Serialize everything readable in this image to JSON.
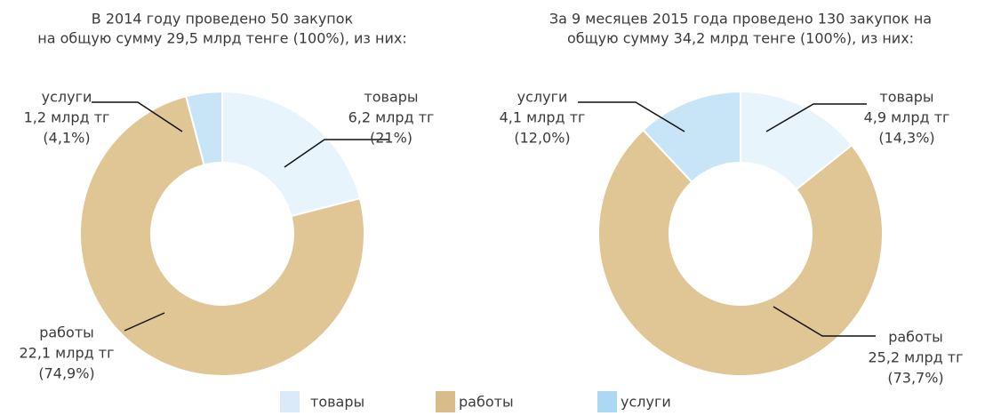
{
  "chart_data": [
    {
      "type": "pie",
      "title": [
        "В 2014 году проведено 50 закупок",
        "на общую сумму 29,5 млрд тенге (100%), из них:"
      ],
      "categories": [
        "товары",
        "работы",
        "услуги"
      ],
      "values": [
        21,
        74.9,
        4.1
      ],
      "value_labels": [
        "(21%)",
        "(74,9%)",
        "(4,1%)"
      ],
      "amounts": [
        "6,2 млрд тг",
        "22,1 млрд тг",
        "1,2 млрд тг"
      ],
      "colors": [
        "#e7f4fc",
        "#e0c595",
        "#c8e5f7"
      ]
    },
    {
      "type": "pie",
      "title": [
        "За 9 месяцев 2015 года проведено 130 закупок на",
        "общую сумму 34,2 млрд тенге (100%), из них:"
      ],
      "categories": [
        "товары",
        "работы",
        "услуги"
      ],
      "values": [
        14.3,
        73.7,
        12.0
      ],
      "value_labels": [
        "(14,3%)",
        "(73,7%)",
        "(12,0%)"
      ],
      "amounts": [
        "4,9 млрд тг",
        "25,2 млрд тг",
        "4,1 млрд тг"
      ],
      "colors": [
        "#e7f4fc",
        "#e0c595",
        "#c8e5f7"
      ]
    }
  ],
  "legend": {
    "items": [
      {
        "name": "товары",
        "color": "#dbeaf8"
      },
      {
        "name": "работы",
        "color": "#d8bd8a"
      },
      {
        "name": "услуги",
        "color": "#acd8f3"
      }
    ]
  }
}
